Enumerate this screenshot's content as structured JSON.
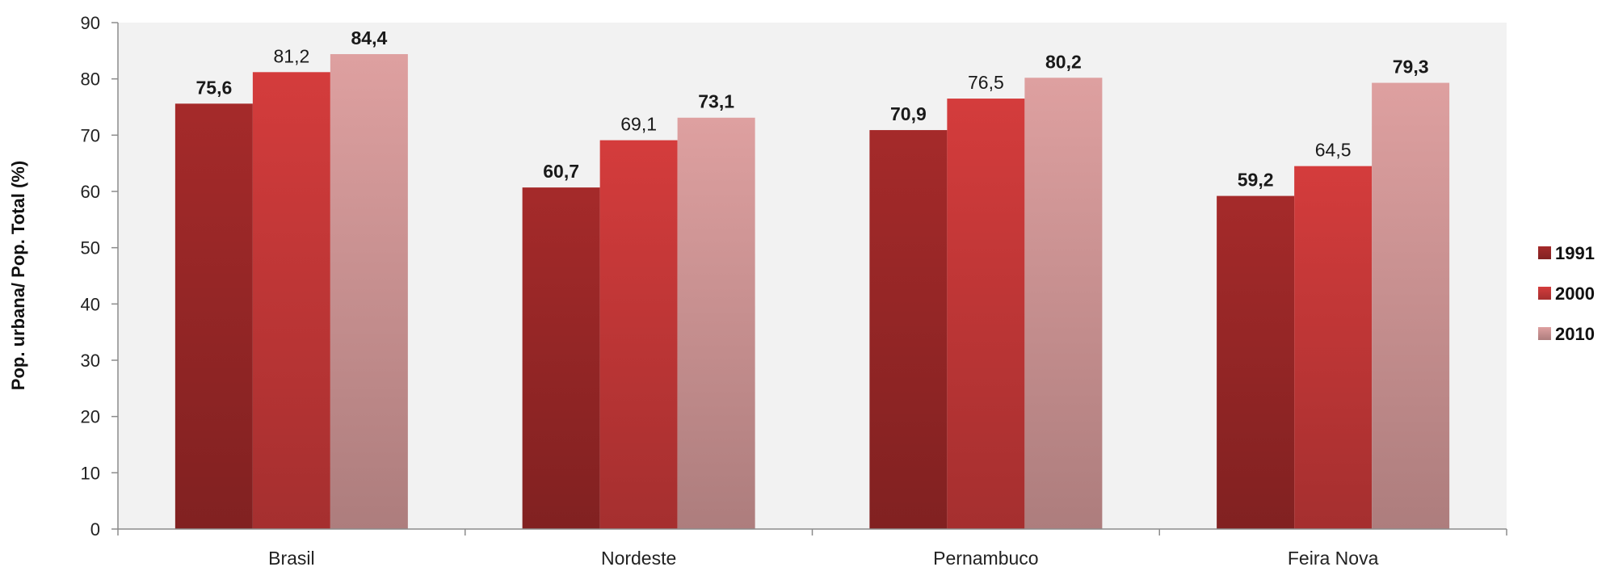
{
  "chart_data": {
    "type": "bar",
    "title": "",
    "xlabel": "",
    "ylabel": "Pop. urbana/ Pop. Total (%)",
    "ylim": [
      0,
      90
    ],
    "yticks": [
      "0",
      "10",
      "20",
      "30",
      "40",
      "50",
      "60",
      "70",
      "80",
      "90"
    ],
    "categories": [
      "Brasil",
      "Nordeste",
      "Pernambuco",
      "Feira Nova"
    ],
    "series": [
      {
        "name": "1991",
        "color": "#a52a2a",
        "values": [
          75.6,
          60.7,
          70.9,
          59.2
        ],
        "labels": [
          "75,6",
          "60,7",
          "70,9",
          "59,2"
        ],
        "label_bold": true
      },
      {
        "name": "2000",
        "color": "#d43c3c",
        "values": [
          81.2,
          69.1,
          76.5,
          64.5
        ],
        "labels": [
          "81,2",
          "69,1",
          "76,5",
          "64,5"
        ],
        "label_bold": false
      },
      {
        "name": "2010",
        "color": "#dea0a0",
        "values": [
          84.4,
          73.1,
          80.2,
          79.3
        ],
        "labels": [
          "84,4",
          "73,1",
          "80,2",
          "79,3"
        ],
        "label_bold": true
      }
    ],
    "grid": false,
    "legend": "right",
    "plot_background": "#f2f2f2"
  }
}
